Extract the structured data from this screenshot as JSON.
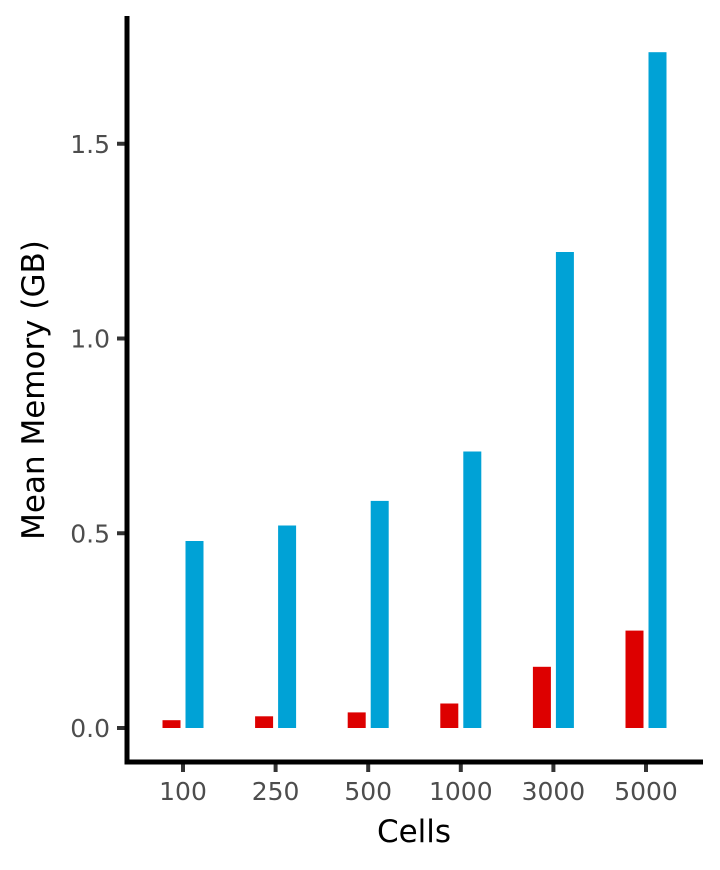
{
  "chart_data": {
    "type": "bar",
    "xlabel": "Cells",
    "ylabel": "Mean Memory (GB)",
    "categories": [
      "100",
      "250",
      "500",
      "1000",
      "3000",
      "5000"
    ],
    "series": [
      {
        "color": "#dd0000",
        "values": [
          0.02,
          0.03,
          0.04,
          0.063,
          0.157,
          0.25
        ]
      },
      {
        "color": "#00a2d6",
        "values": [
          0.48,
          0.52,
          0.583,
          0.71,
          1.222,
          1.735
        ]
      }
    ],
    "yticks": [
      "0.0",
      "0.5",
      "1.0",
      "1.5"
    ],
    "ytick_values": [
      0,
      0.5,
      1.0,
      1.5
    ],
    "ylim": [
      -0.09,
      1.83
    ],
    "grid": false,
    "legend": "none"
  }
}
